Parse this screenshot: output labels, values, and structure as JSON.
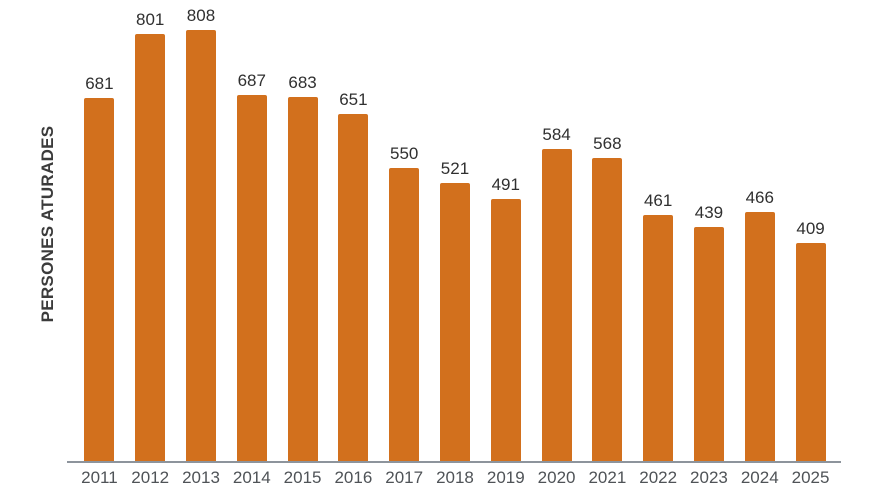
{
  "chart_data": {
    "type": "bar",
    "title": "",
    "xlabel": "",
    "ylabel": "PERSONES ATURADES",
    "categories": [
      "2011",
      "2012",
      "2013",
      "2014",
      "2015",
      "2016",
      "2017",
      "2018",
      "2019",
      "2020",
      "2021",
      "2022",
      "2023",
      "2024",
      "2025"
    ],
    "values": [
      681,
      801,
      808,
      687,
      683,
      651,
      550,
      521,
      491,
      584,
      568,
      461,
      439,
      466,
      409
    ],
    "value_labels_position": "above bars",
    "grid": false,
    "legend": "none",
    "ylim": [
      0,
      850
    ],
    "bar_color": "#D2701D",
    "axis_line_color": "#8D949C",
    "value_label_color": "#303030",
    "tick_label_color": "#4F5357",
    "ylabel_color": "#3B3B3B",
    "background_color": "#FFFFFF"
  }
}
